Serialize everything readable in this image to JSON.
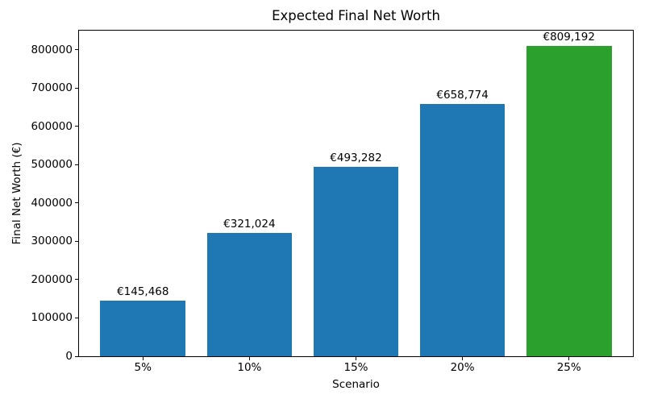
{
  "chart_data": {
    "type": "bar",
    "title": "Expected Final Net Worth",
    "xlabel": "Scenario",
    "ylabel": "Final Net Worth (€)",
    "categories": [
      "5%",
      "10%",
      "15%",
      "20%",
      "25%"
    ],
    "values": [
      145468,
      321024,
      493282,
      658774,
      809192
    ],
    "bar_value_labels": [
      "€145,468",
      "€321,024",
      "€493,282",
      "€658,774",
      "€809,192"
    ],
    "bar_colors": [
      "#1f77b4",
      "#1f77b4",
      "#1f77b4",
      "#1f77b4",
      "#2ca02c"
    ],
    "default_bar_color": "#1f77b4",
    "highlight_color": "#2ca02c",
    "ylim": [
      0,
      849652
    ],
    "ytick_values": [
      0,
      100000,
      200000,
      300000,
      400000,
      500000,
      600000,
      700000,
      800000
    ],
    "ytick_labels": [
      "0",
      "100000",
      "200000",
      "300000",
      "400000",
      "500000",
      "600000",
      "700000",
      "800000"
    ],
    "x_range": [
      -0.6,
      4.6
    ],
    "bar_width_fraction": 0.8,
    "grid": false,
    "legend": false,
    "plot_background": "#ffffff",
    "spine_color": "#000000"
  }
}
